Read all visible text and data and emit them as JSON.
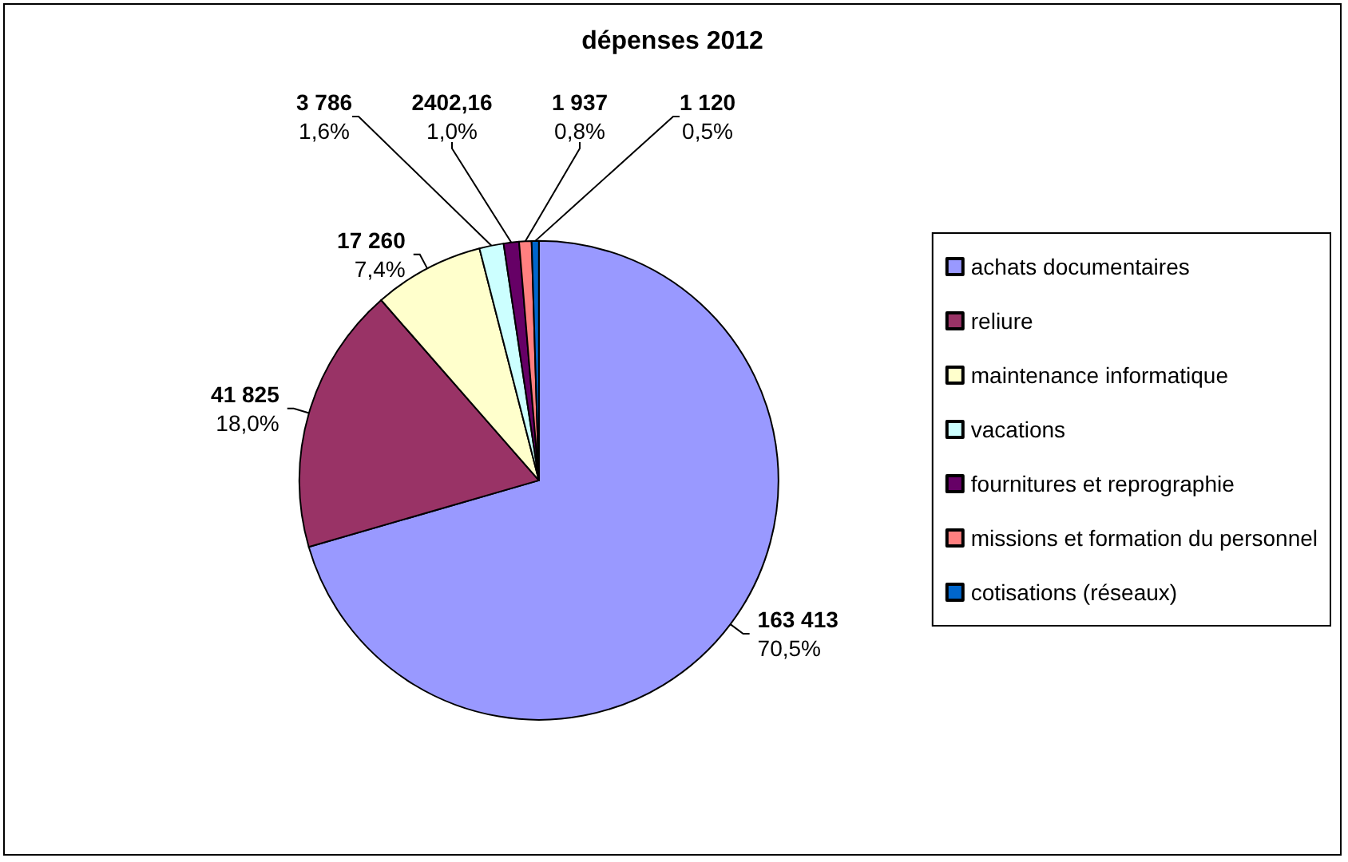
{
  "chart_data": {
    "type": "pie",
    "title": "dépenses 2012",
    "categories": [
      "achats documentaires",
      "reliure",
      "maintenance informatique",
      "vacations",
      "fournitures et reprographie",
      "missions et formation du personnel",
      "cotisations (réseaux)"
    ],
    "values": [
      163413,
      41825,
      17260,
      3786,
      2402.16,
      1937,
      1120
    ],
    "colors": [
      "#9999ff",
      "#993366",
      "#ffffcc",
      "#ccffff",
      "#660066",
      "#ff8080",
      "#0066cc"
    ],
    "value_labels": [
      "163 413\n70,5%",
      "41 825\n18,0%",
      "17 260\n7,4%",
      "3 786\n1,6%",
      "2402,16\n1,0%",
      "1 937\n0,8%",
      "1 120\n0,5%"
    ],
    "legend": "right"
  }
}
